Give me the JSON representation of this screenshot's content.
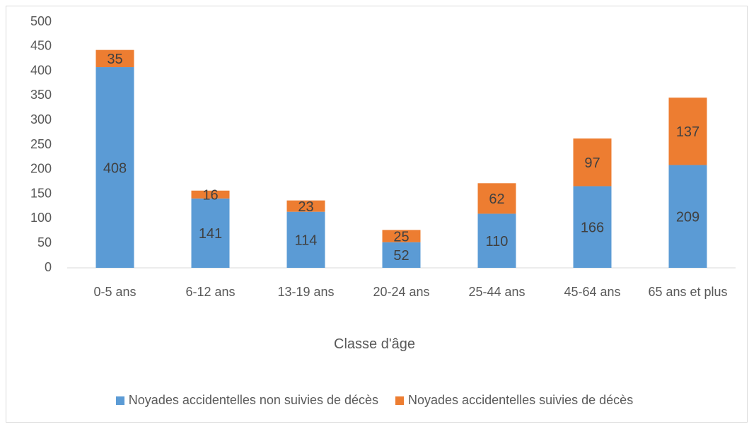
{
  "chart_data": {
    "type": "bar",
    "stacked": true,
    "x_label": "Classe d'âge",
    "categories": [
      "0-5 ans",
      "6-12 ans",
      "13-19 ans",
      "20-24 ans",
      "25-44 ans",
      "45-64 ans",
      "65 ans et plus"
    ],
    "series": [
      {
        "name": "Noyades accidentelles non suivies de décès",
        "color": "#5b9bd5",
        "values": [
          408,
          141,
          114,
          52,
          110,
          166,
          209
        ]
      },
      {
        "name": "Noyades accidentelles suivies de décès",
        "color": "#ed7d31",
        "values": [
          35,
          16,
          23,
          25,
          62,
          97,
          137
        ]
      }
    ],
    "ylim": [
      0,
      500
    ],
    "yticks": [
      0,
      50,
      100,
      150,
      200,
      250,
      300,
      350,
      400,
      450,
      500
    ],
    "legend": "bottom"
  }
}
